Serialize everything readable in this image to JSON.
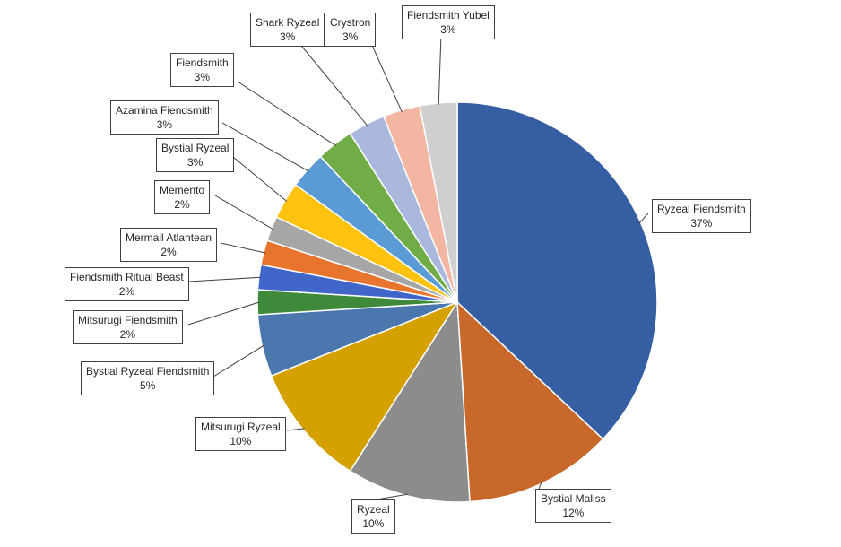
{
  "chart_data": {
    "type": "pie",
    "title": "",
    "start_angle_deg": 0,
    "direction": "clockwise",
    "slices": [
      {
        "label": "Ryzeal Fiendsmith",
        "value": 37,
        "value_label": "37%",
        "color": "#355EA3"
      },
      {
        "label": "Bystial Maliss",
        "value": 12,
        "value_label": "12%",
        "color": "#C8682A"
      },
      {
        "label": "Ryzeal",
        "value": 10,
        "value_label": "10%",
        "color": "#8C8C8C"
      },
      {
        "label": "Mitsurugi Ryzeal",
        "value": 10,
        "value_label": "10%",
        "color": "#D4A100"
      },
      {
        "label": "Bystial Ryzeal Fiendsmith",
        "value": 5,
        "value_label": "5%",
        "color": "#4A77AE"
      },
      {
        "label": "Mitsurugi Fiendsmith",
        "value": 2,
        "value_label": "2%",
        "color": "#3E8A3A"
      },
      {
        "label": "Fiendsmith Ritual Beast",
        "value": 2,
        "value_label": "2%",
        "color": "#3F66C8"
      },
      {
        "label": "Mermail Atlantean",
        "value": 2,
        "value_label": "2%",
        "color": "#E8752E"
      },
      {
        "label": "Memento",
        "value": 2,
        "value_label": "2%",
        "color": "#A6A6A6"
      },
      {
        "label": "Bystial Ryzeal",
        "value": 3,
        "value_label": "3%",
        "color": "#FFC20E"
      },
      {
        "label": "Azamina Fiendsmith",
        "value": 3,
        "value_label": "3%",
        "color": "#5B9BD5"
      },
      {
        "label": "Fiendsmith",
        "value": 3,
        "value_label": "3%",
        "color": "#70AD47"
      },
      {
        "label": "Shark Ryzeal",
        "value": 3,
        "value_label": "3%",
        "color": "#A9B8DC"
      },
      {
        "label": "Crystron",
        "value": 3,
        "value_label": "3%",
        "color": "#F2B6A3"
      },
      {
        "label": "Fiendsmith Yubel",
        "value": 3,
        "value_label": "3%",
        "color": "#CFCFCF"
      }
    ]
  }
}
